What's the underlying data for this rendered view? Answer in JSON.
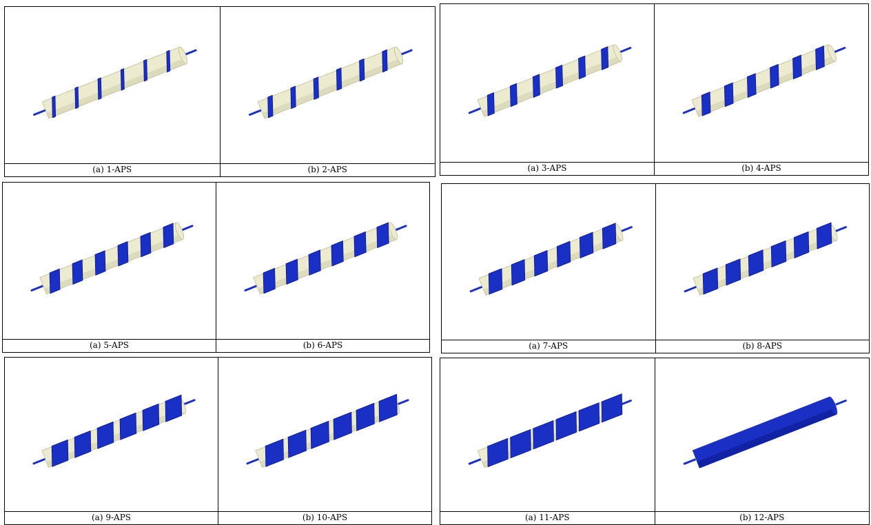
{
  "figures": [
    {
      "panels": [
        {
          "caption": "(a) 1-APS",
          "coverage": 0.13
        },
        {
          "caption": "(b) 2-APS",
          "coverage": 0.2
        }
      ]
    },
    {
      "panels": [
        {
          "caption": "(a) 3-APS",
          "coverage": 0.28
        },
        {
          "caption": "(b) 4-APS",
          "coverage": 0.36
        }
      ]
    },
    {
      "panels": [
        {
          "caption": "(a) 5-APS",
          "coverage": 0.43
        },
        {
          "caption": "(b) 6-APS",
          "coverage": 0.5
        }
      ]
    },
    {
      "panels": [
        {
          "caption": "(a) 7-APS",
          "coverage": 0.57
        },
        {
          "caption": "(b) 8-APS",
          "coverage": 0.63
        }
      ]
    },
    {
      "panels": [
        {
          "caption": "(a) 9-APS",
          "coverage": 0.7
        },
        {
          "caption": "(b) 10-APS",
          "coverage": 0.78
        }
      ]
    },
    {
      "panels": [
        {
          "caption": "(a) 11-APS",
          "coverage": 0.88
        },
        {
          "caption": "(b) 12-APS",
          "coverage": 1.0
        }
      ]
    }
  ],
  "colors": {
    "tube": "#ecebcf",
    "tube_shadow": "#c9c7a2",
    "wire": "#1a2fc4",
    "wire_dark": "#0c1a90"
  }
}
